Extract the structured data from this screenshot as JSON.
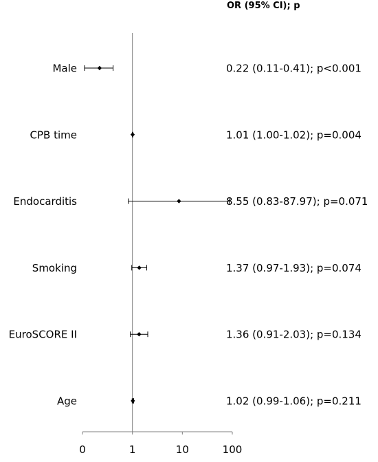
{
  "chart_data": {
    "type": "forest",
    "header": "OR (95% CI); p",
    "x_scale": "log10",
    "xlim": [
      0.1,
      100
    ],
    "x_ticks": [
      {
        "value": 0.1,
        "label": "0"
      },
      {
        "value": 1,
        "label": "1"
      },
      {
        "value": 10,
        "label": "10"
      },
      {
        "value": 100,
        "label": "100"
      }
    ],
    "reference_line": 1,
    "rows": [
      {
        "label": "Male",
        "or": 0.22,
        "low": 0.11,
        "high": 0.41,
        "text": "0.22 (0.11-0.41); p<0.001"
      },
      {
        "label": "CPB time",
        "or": 1.01,
        "low": 1.0,
        "high": 1.02,
        "text": "1.01 (1.00-1.02); p=0.004"
      },
      {
        "label": "Endocarditis",
        "or": 8.55,
        "low": 0.83,
        "high": 87.97,
        "text": "8.55 (0.83-87.97); p=0.071"
      },
      {
        "label": "Smoking",
        "or": 1.37,
        "low": 0.97,
        "high": 1.93,
        "text": "1.37 (0.97-1.93); p=0.074"
      },
      {
        "label": "EuroSCORE II",
        "or": 1.36,
        "low": 0.91,
        "high": 2.03,
        "text": "1.36 (0.91-2.03); p=0.134"
      },
      {
        "label": "Age",
        "or": 1.02,
        "low": 0.99,
        "high": 1.06,
        "text": "1.02 (0.99-1.06); p=0.211"
      }
    ],
    "colors": {
      "marker": "#000000",
      "line": "#000000",
      "axis": "#808080"
    }
  }
}
